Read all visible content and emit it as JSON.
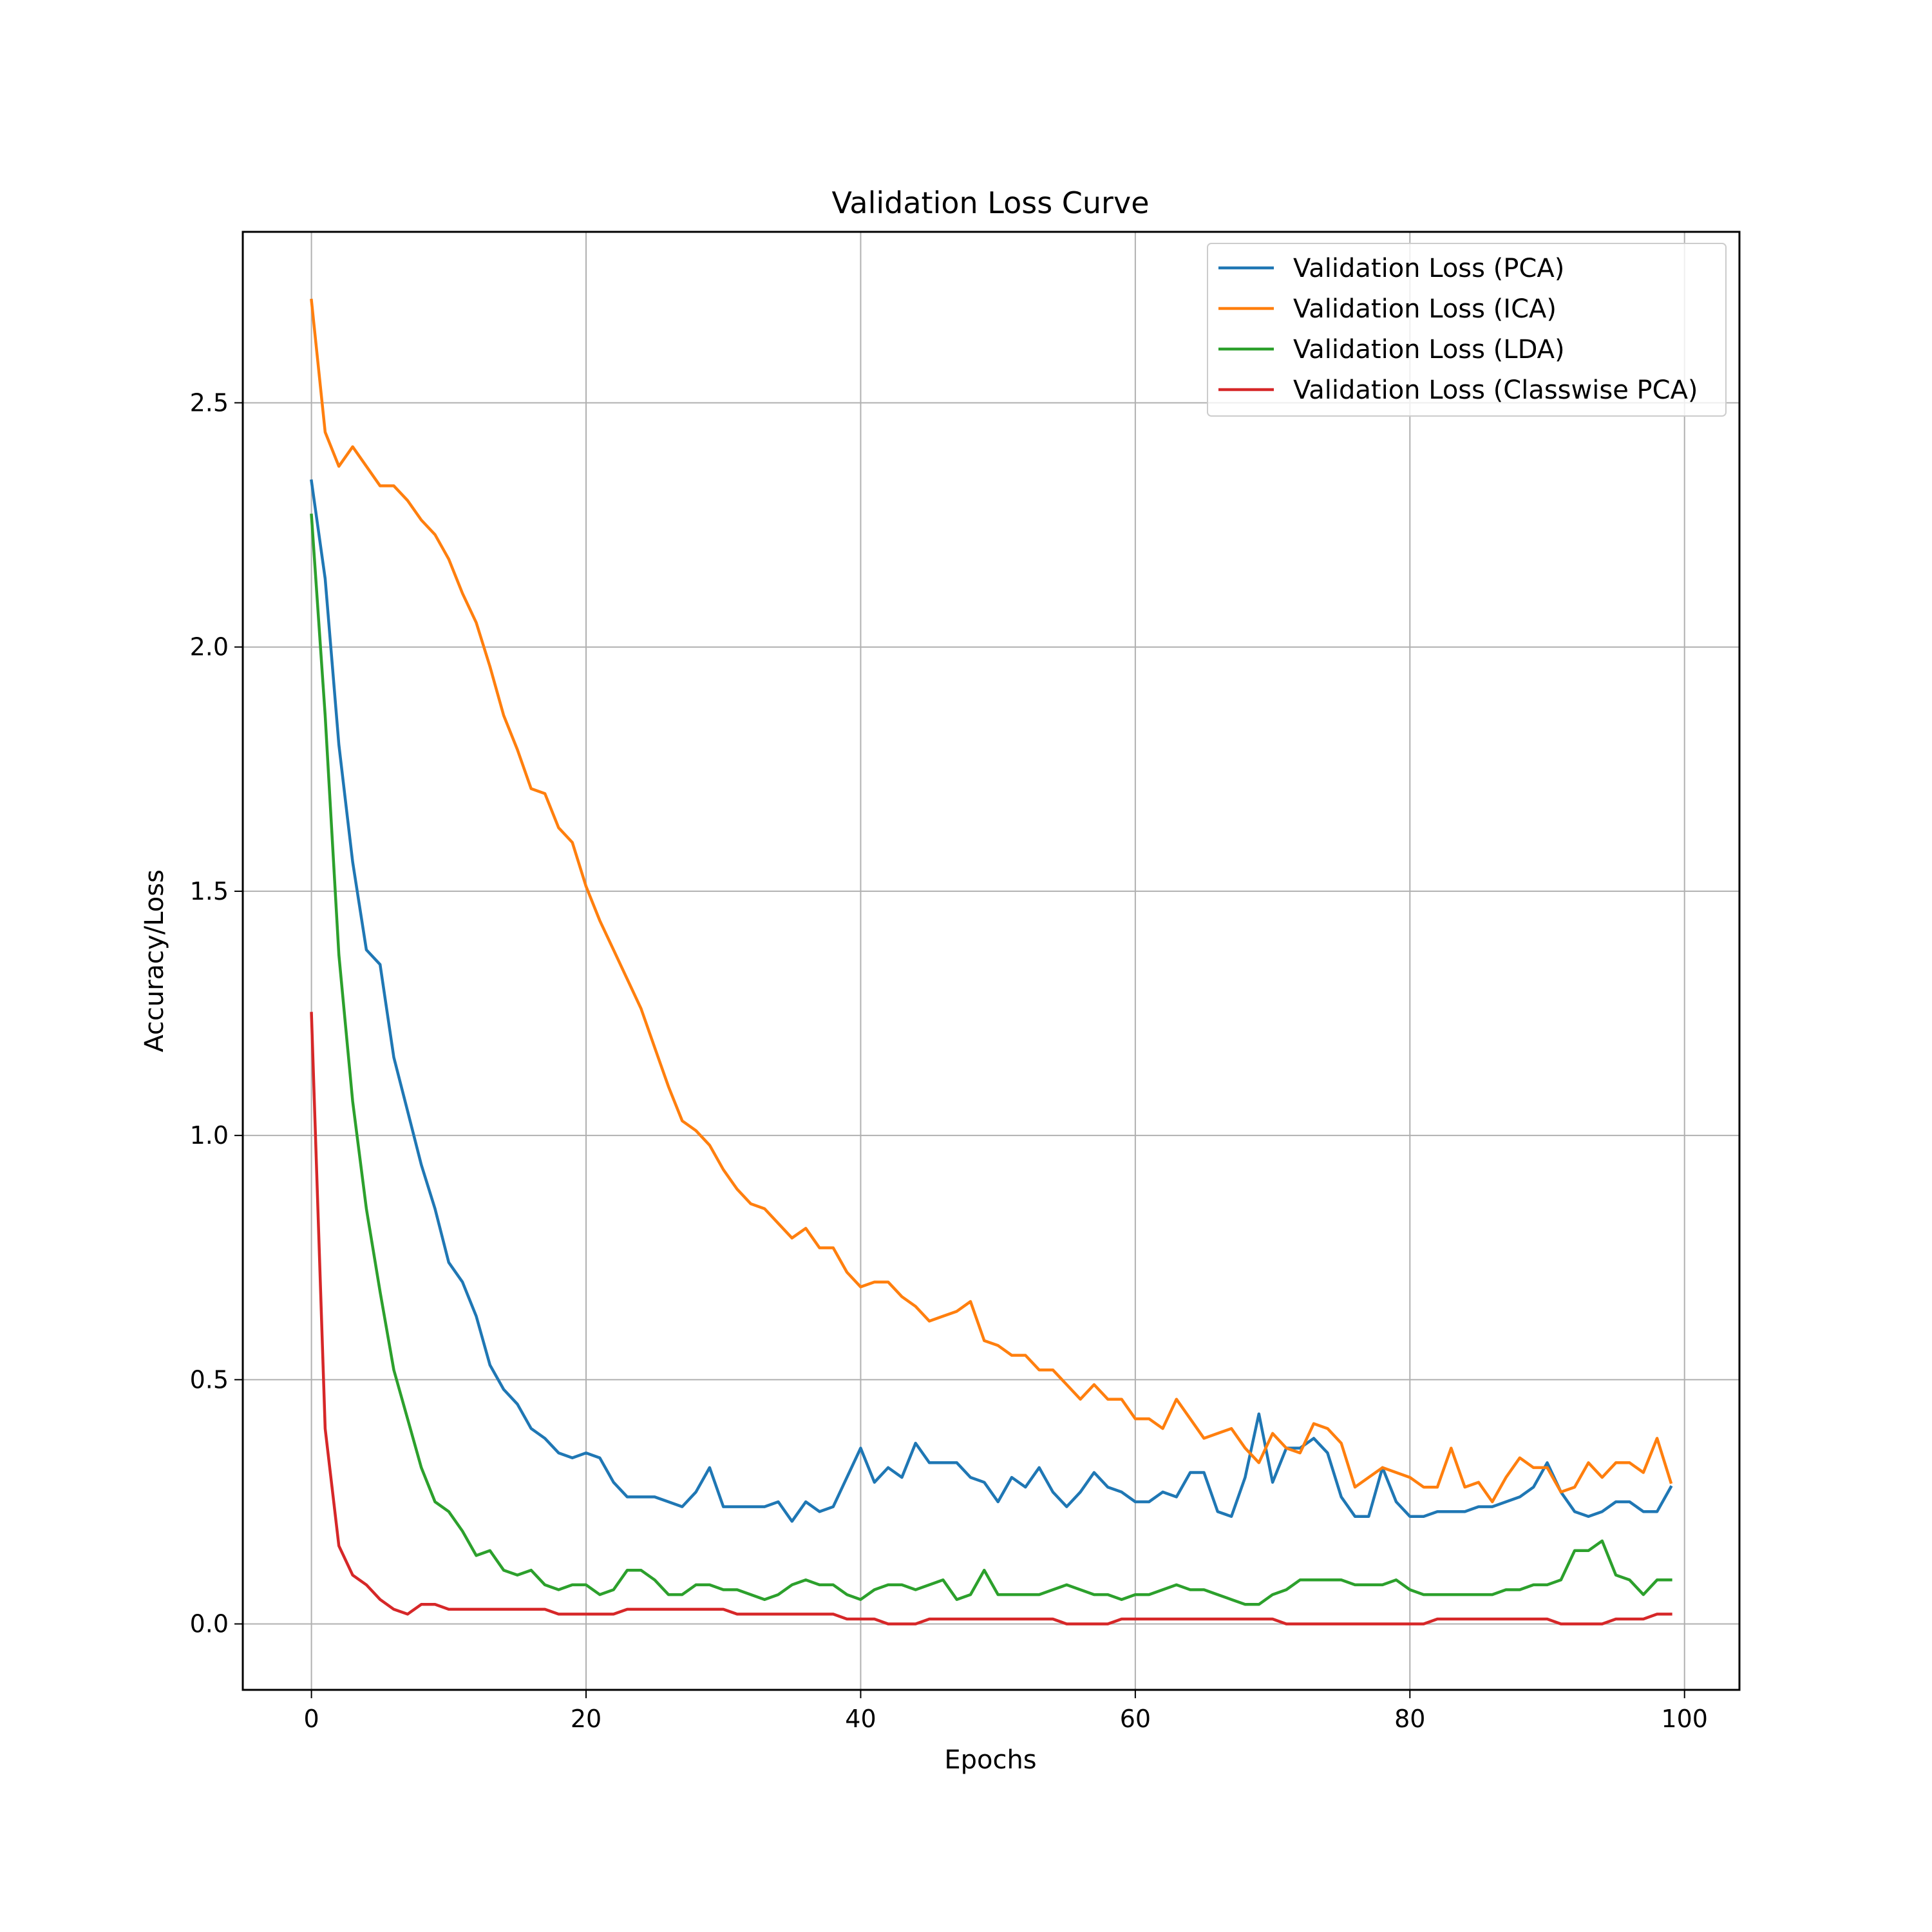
{
  "chart_data": {
    "type": "line",
    "title": "Validation Loss Curve",
    "xlabel": "Epochs",
    "ylabel": "Accuracy/Loss",
    "xlim": [
      -5,
      104
    ],
    "ylim": [
      -0.135,
      2.85
    ],
    "xticks": [
      0,
      20,
      40,
      60,
      80,
      100
    ],
    "yticks": [
      0.0,
      0.5,
      1.0,
      1.5,
      2.0,
      2.5
    ],
    "xtick_labels": [
      "0",
      "20",
      "40",
      "60",
      "80",
      "100"
    ],
    "ytick_labels": [
      "0.0",
      "0.5",
      "1.0",
      "1.5",
      "2.0",
      "2.5"
    ],
    "grid": true,
    "legend_position": "top-right",
    "x": [
      0,
      1,
      2,
      3,
      4,
      5,
      6,
      7,
      8,
      9,
      10,
      11,
      12,
      13,
      14,
      15,
      16,
      17,
      18,
      19,
      20,
      21,
      22,
      23,
      24,
      25,
      26,
      27,
      28,
      29,
      30,
      31,
      32,
      33,
      34,
      35,
      36,
      37,
      38,
      39,
      40,
      41,
      42,
      43,
      44,
      45,
      46,
      47,
      48,
      49,
      50,
      51,
      52,
      53,
      54,
      55,
      56,
      57,
      58,
      59,
      60,
      61,
      62,
      63,
      64,
      65,
      66,
      67,
      68,
      69,
      70,
      71,
      72,
      73,
      74,
      75,
      76,
      77,
      78,
      79,
      80,
      81,
      82,
      83,
      84,
      85,
      86,
      87,
      88,
      89,
      90,
      91,
      92,
      93,
      94,
      95,
      96,
      97,
      98,
      99
    ],
    "series": [
      {
        "name": "Validation Loss (PCA)",
        "color": "#1f77b4",
        "values": [
          2.34,
          2.14,
          1.8,
          1.56,
          1.38,
          1.35,
          1.16,
          1.05,
          0.94,
          0.85,
          0.74,
          0.7,
          0.63,
          0.53,
          0.48,
          0.45,
          0.4,
          0.38,
          0.35,
          0.34,
          0.35,
          0.34,
          0.29,
          0.26,
          0.26,
          0.26,
          0.25,
          0.24,
          0.27,
          0.32,
          0.24,
          0.24,
          0.24,
          0.24,
          0.25,
          0.21,
          0.25,
          0.23,
          0.24,
          0.3,
          0.36,
          0.29,
          0.32,
          0.3,
          0.37,
          0.33,
          0.33,
          0.33,
          0.3,
          0.29,
          0.25,
          0.3,
          0.28,
          0.32,
          0.27,
          0.24,
          0.27,
          0.31,
          0.28,
          0.27,
          0.25,
          0.25,
          0.27,
          0.26,
          0.31,
          0.31,
          0.23,
          0.22,
          0.3,
          0.43,
          0.29,
          0.36,
          0.36,
          0.38,
          0.35,
          0.26,
          0.22,
          0.22,
          0.32,
          0.25,
          0.22,
          0.22,
          0.23,
          0.23,
          0.23,
          0.24,
          0.24,
          0.25,
          0.26,
          0.28,
          0.33,
          0.27,
          0.23,
          0.22,
          0.23,
          0.25,
          0.25,
          0.23,
          0.23,
          0.28
        ]
      },
      {
        "name": "Validation Loss (ICA)",
        "color": "#ff7f0e",
        "values": [
          2.71,
          2.44,
          2.37,
          2.41,
          2.37,
          2.33,
          2.33,
          2.3,
          2.26,
          2.23,
          2.18,
          2.11,
          2.05,
          1.96,
          1.86,
          1.79,
          1.71,
          1.7,
          1.63,
          1.6,
          1.51,
          1.44,
          1.38,
          1.32,
          1.26,
          1.18,
          1.1,
          1.03,
          1.01,
          0.98,
          0.93,
          0.89,
          0.86,
          0.85,
          0.82,
          0.79,
          0.81,
          0.77,
          0.77,
          0.72,
          0.69,
          0.7,
          0.7,
          0.67,
          0.65,
          0.62,
          0.63,
          0.64,
          0.66,
          0.58,
          0.57,
          0.55,
          0.55,
          0.52,
          0.52,
          0.49,
          0.46,
          0.49,
          0.46,
          0.46,
          0.42,
          0.42,
          0.4,
          0.46,
          0.42,
          0.38,
          0.39,
          0.4,
          0.36,
          0.33,
          0.39,
          0.36,
          0.35,
          0.41,
          0.4,
          0.37,
          0.28,
          0.3,
          0.32,
          0.31,
          0.3,
          0.28,
          0.28,
          0.36,
          0.28,
          0.29,
          0.25,
          0.3,
          0.34,
          0.32,
          0.32,
          0.27,
          0.28,
          0.33,
          0.3,
          0.33,
          0.33,
          0.31,
          0.38,
          0.29
        ]
      },
      {
        "name": "Validation Loss (LDA)",
        "color": "#2ca02c",
        "values": [
          2.27,
          1.86,
          1.37,
          1.07,
          0.85,
          0.68,
          0.52,
          0.42,
          0.32,
          0.25,
          0.23,
          0.19,
          0.14,
          0.15,
          0.11,
          0.1,
          0.11,
          0.08,
          0.07,
          0.08,
          0.08,
          0.06,
          0.07,
          0.11,
          0.11,
          0.09,
          0.06,
          0.06,
          0.08,
          0.08,
          0.07,
          0.07,
          0.06,
          0.05,
          0.06,
          0.08,
          0.09,
          0.08,
          0.08,
          0.06,
          0.05,
          0.07,
          0.08,
          0.08,
          0.07,
          0.08,
          0.09,
          0.05,
          0.06,
          0.11,
          0.06,
          0.06,
          0.06,
          0.06,
          0.07,
          0.08,
          0.07,
          0.06,
          0.06,
          0.05,
          0.06,
          0.06,
          0.07,
          0.08,
          0.07,
          0.07,
          0.06,
          0.05,
          0.04,
          0.04,
          0.06,
          0.07,
          0.09,
          0.09,
          0.09,
          0.09,
          0.08,
          0.08,
          0.08,
          0.09,
          0.07,
          0.06,
          0.06,
          0.06,
          0.06,
          0.06,
          0.06,
          0.07,
          0.07,
          0.08,
          0.08,
          0.09,
          0.15,
          0.15,
          0.17,
          0.1,
          0.09,
          0.06,
          0.09,
          0.09
        ]
      },
      {
        "name": "Validation Loss (Classwise PCA)",
        "color": "#d62728",
        "values": [
          1.25,
          0.4,
          0.16,
          0.1,
          0.08,
          0.05,
          0.03,
          0.02,
          0.04,
          0.04,
          0.03,
          0.03,
          0.03,
          0.03,
          0.03,
          0.03,
          0.03,
          0.03,
          0.02,
          0.02,
          0.02,
          0.02,
          0.02,
          0.03,
          0.03,
          0.03,
          0.03,
          0.03,
          0.03,
          0.03,
          0.03,
          0.02,
          0.02,
          0.02,
          0.02,
          0.02,
          0.02,
          0.02,
          0.02,
          0.01,
          0.01,
          0.01,
          0.0,
          0.0,
          0.0,
          0.01,
          0.01,
          0.01,
          0.01,
          0.01,
          0.01,
          0.01,
          0.01,
          0.01,
          0.01,
          0.0,
          0.0,
          0.0,
          0.0,
          0.01,
          0.01,
          0.01,
          0.01,
          0.01,
          0.01,
          0.01,
          0.01,
          0.01,
          0.01,
          0.01,
          0.01,
          0.0,
          0.0,
          0.0,
          0.0,
          0.0,
          0.0,
          0.0,
          0.0,
          0.0,
          0.0,
          0.0,
          0.01,
          0.01,
          0.01,
          0.01,
          0.01,
          0.01,
          0.01,
          0.01,
          0.01,
          0.0,
          0.0,
          0.0,
          0.0,
          0.01,
          0.01,
          0.01,
          0.02,
          0.02
        ]
      }
    ]
  }
}
